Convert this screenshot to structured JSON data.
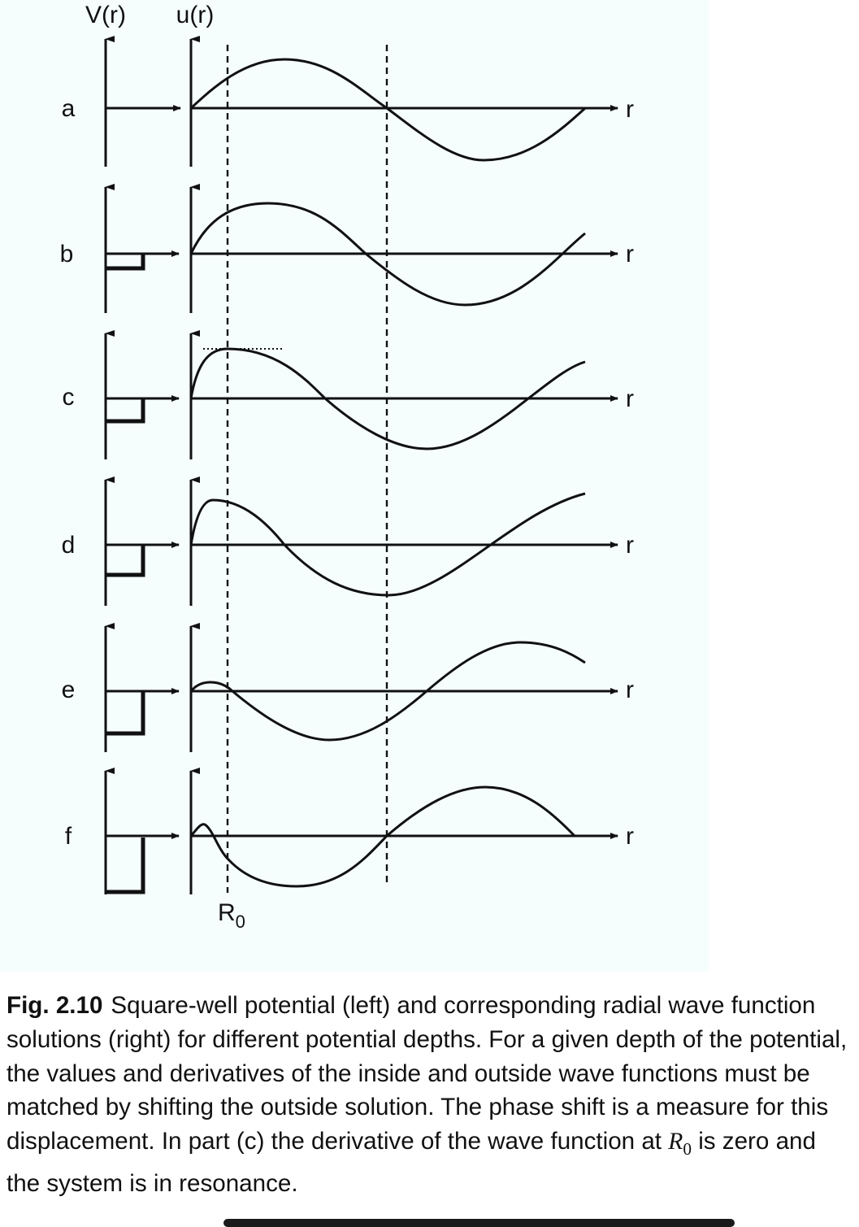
{
  "diagram": {
    "labels": {
      "potential_axis": "V(r)",
      "wave_axis": "u(r)",
      "radius_marker": "R",
      "radius_marker_sub": "0",
      "r_axis": "r"
    },
    "panels": [
      {
        "id": "a",
        "label": "a"
      },
      {
        "id": "b",
        "label": "b"
      },
      {
        "id": "c",
        "label": "c"
      },
      {
        "id": "d",
        "label": "d"
      },
      {
        "id": "e",
        "label": "e"
      },
      {
        "id": "f",
        "label": "f"
      }
    ]
  },
  "caption": {
    "fig_label": "Fig. 2.10",
    "text_before": "Square-well potential (left) and corresponding radial wave function solutions (right) for different potential depths. For a given depth of the potential, the values and derivatives of the inside and outside wave functions must be matched by shifting the outside solution. The phase shift is a measure for this displacement. In part (c) the derivative of the wave function at ",
    "math_symbol": "R",
    "math_sub": "0",
    "text_after": " is zero and the system is in resonance."
  },
  "colors": {
    "panel_background": "#f5fdfd",
    "ink": "#111111"
  }
}
